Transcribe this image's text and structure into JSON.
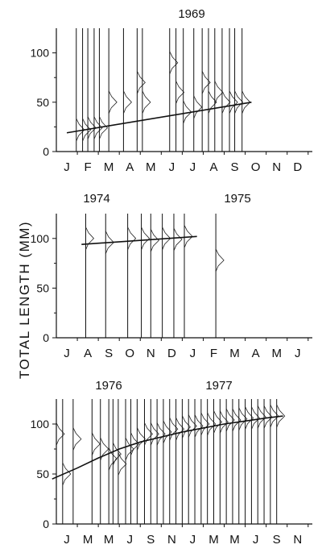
{
  "ylabel": "TOTAL LENGTH (MM)",
  "chart_data": [
    {
      "type": "line",
      "title": "1969",
      "year_labels": [
        "1969"
      ],
      "ylim": [
        0,
        125
      ],
      "yticks": [
        0,
        50,
        100
      ],
      "x_tick_labels": [
        "J",
        "F",
        "M",
        "A",
        "M",
        "J",
        "J",
        "A",
        "S",
        "O",
        "N",
        "D"
      ],
      "samples": [
        {
          "x": 1.45,
          "mode": 22
        },
        {
          "x": 1.75,
          "mode": 22
        },
        {
          "x": 2.0,
          "mode": 24
        },
        {
          "x": 2.3,
          "mode": 24
        },
        {
          "x": 2.55,
          "mode": 24
        },
        {
          "x": 3.0,
          "mode": 50
        },
        {
          "x": 3.7,
          "mode": 50
        },
        {
          "x": 4.35,
          "mode": 70
        },
        {
          "x": 4.6,
          "mode": 50
        },
        {
          "x": 5.9,
          "mode": 90
        },
        {
          "x": 6.2,
          "mode": 60
        },
        {
          "x": 6.55,
          "mode": 40
        },
        {
          "x": 7.05,
          "mode": 45
        },
        {
          "x": 7.45,
          "mode": 70
        },
        {
          "x": 7.75,
          "mode": 50
        },
        {
          "x": 8.05,
          "mode": 60
        },
        {
          "x": 8.4,
          "mode": 50
        },
        {
          "x": 8.75,
          "mode": 50
        },
        {
          "x": 9.0,
          "mode": 50
        },
        {
          "x": 9.35,
          "mode": 50
        }
      ],
      "growth_curve": {
        "x": [
          1,
          9.8
        ],
        "y": [
          19,
          50
        ]
      }
    },
    {
      "type": "line",
      "year_labels": [
        "1974",
        "1975"
      ],
      "ylim": [
        0,
        125
      ],
      "yticks": [
        0,
        50,
        100
      ],
      "x_tick_labels": [
        "J",
        "A",
        "S",
        "O",
        "N",
        "D",
        "J",
        "F",
        "M",
        "A",
        "M",
        "J"
      ],
      "samples": [
        {
          "x": 1.9,
          "mode": 100
        },
        {
          "x": 2.85,
          "mode": 96
        },
        {
          "x": 3.9,
          "mode": 100
        },
        {
          "x": 4.55,
          "mode": 100
        },
        {
          "x": 5.0,
          "mode": 98
        },
        {
          "x": 5.55,
          "mode": 100
        },
        {
          "x": 6.1,
          "mode": 99
        },
        {
          "x": 6.6,
          "mode": 102
        },
        {
          "x": 8.1,
          "mode": 78
        }
      ],
      "growth_curve": {
        "x": [
          1.7,
          7.2
        ],
        "y": [
          94,
          102
        ]
      }
    },
    {
      "type": "line",
      "year_labels": [
        "1976",
        "1977"
      ],
      "ylim": [
        0,
        125
      ],
      "yticks": [
        0,
        50,
        100
      ],
      "x_tick_labels": [
        "J",
        "M",
        "M",
        "J",
        "S",
        "N",
        "J",
        "M",
        "M",
        "J",
        "S",
        "N"
      ],
      "samples": [
        {
          "x": 0.5,
          "mode": 90
        },
        {
          "x": 0.8,
          "mode": 50
        },
        {
          "x": 1.3,
          "mode": 85
        },
        {
          "x": 2.2,
          "mode": 80
        },
        {
          "x": 2.6,
          "mode": 75
        },
        {
          "x": 3.0,
          "mode": 65
        },
        {
          "x": 3.2,
          "mode": 70
        },
        {
          "x": 3.45,
          "mode": 60
        },
        {
          "x": 3.8,
          "mode": 75
        },
        {
          "x": 4.05,
          "mode": 80
        },
        {
          "x": 4.35,
          "mode": 85
        },
        {
          "x": 4.7,
          "mode": 90
        },
        {
          "x": 5.0,
          "mode": 90
        },
        {
          "x": 5.3,
          "mode": 90
        },
        {
          "x": 5.6,
          "mode": 92
        },
        {
          "x": 5.9,
          "mode": 95
        },
        {
          "x": 6.2,
          "mode": 95
        },
        {
          "x": 6.5,
          "mode": 97
        },
        {
          "x": 6.8,
          "mode": 98
        },
        {
          "x": 7.1,
          "mode": 98
        },
        {
          "x": 7.4,
          "mode": 100
        },
        {
          "x": 7.7,
          "mode": 100
        },
        {
          "x": 8.0,
          "mode": 102
        },
        {
          "x": 8.3,
          "mode": 102
        },
        {
          "x": 8.6,
          "mode": 104
        },
        {
          "x": 8.9,
          "mode": 104
        },
        {
          "x": 9.2,
          "mode": 105
        },
        {
          "x": 9.5,
          "mode": 106
        },
        {
          "x": 9.8,
          "mode": 106
        },
        {
          "x": 10.1,
          "mode": 107
        },
        {
          "x": 10.4,
          "mode": 107
        },
        {
          "x": 10.7,
          "mode": 108
        },
        {
          "x": 11.0,
          "mode": 108
        }
      ],
      "growth_curve": {
        "x": [
          0.3,
          1.5,
          2.5,
          3.5,
          4.5,
          5.5,
          6.5,
          7.5,
          8.5,
          9.5,
          10.5,
          11.3
        ],
        "y": [
          45,
          56,
          66,
          75,
          82,
          87,
          92,
          96,
          100,
          103,
          106,
          108
        ]
      }
    }
  ]
}
